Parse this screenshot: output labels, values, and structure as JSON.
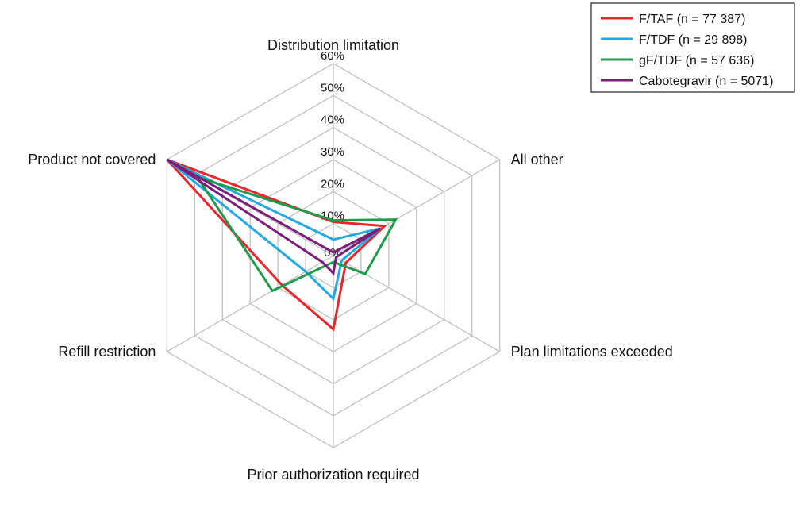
{
  "chart_data": {
    "type": "radar",
    "axes": [
      "Distribution limitation",
      "All other",
      "Plan limitations exceeded",
      "Prior authorization required",
      "Refill restriction",
      "Product not covered"
    ],
    "ticks": [
      "0%",
      "10%",
      "20%",
      "30%",
      "40%",
      "50%",
      "60%"
    ],
    "rlim": [
      0,
      60
    ],
    "unit": "%",
    "grid": true,
    "legend_position": "top-right",
    "series": [
      {
        "name": "F/TAF (n = 77 387)",
        "color": "#e8262b",
        "values": [
          10.5,
          18.5,
          4.5,
          23.0,
          18.5,
          60.0
        ]
      },
      {
        "name": "F/TDF (n = 29 898)",
        "color": "#22a9e1",
        "values": [
          5.0,
          17.0,
          3.0,
          13.5,
          10.0,
          60.0
        ]
      },
      {
        "name": "gF/TDF (n = 57 636)",
        "color": "#1f9a4a",
        "values": [
          11.0,
          22.5,
          11.5,
          2.0,
          22.0,
          49.0
        ]
      },
      {
        "name": "Cabotegravir (n = 5071)",
        "color": "#7a1e7a",
        "values": [
          1.0,
          17.0,
          1.0,
          5.5,
          4.0,
          60.0
        ]
      }
    ]
  }
}
